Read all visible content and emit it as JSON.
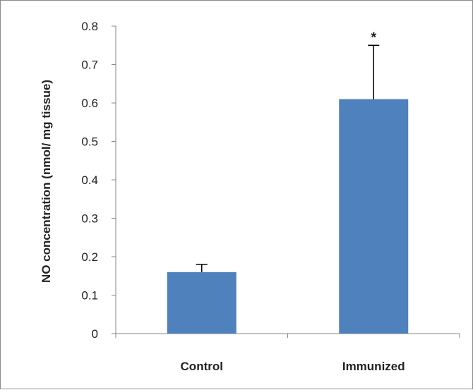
{
  "chart_data": {
    "type": "bar",
    "title": "",
    "xlabel": "",
    "ylabel": "NO concentration (nmol/ mg tissue)",
    "ylim": [
      0,
      0.8
    ],
    "yticks": [
      "0",
      "0.1",
      "0.2",
      "0.3",
      "0.4",
      "0.5",
      "0.6",
      "0.7",
      "0.8"
    ],
    "categories": [
      "Control",
      "Immunized"
    ],
    "values": [
      0.16,
      0.61
    ],
    "error_upper": [
      0.02,
      0.14
    ],
    "annotations": [
      "",
      "*"
    ],
    "bar_color": "#4f81bd",
    "grid": false,
    "legend": "none"
  }
}
